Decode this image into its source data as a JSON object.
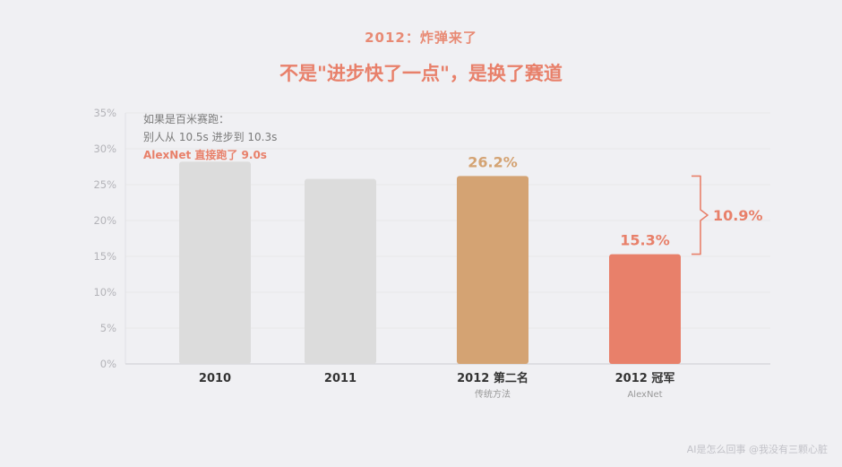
{
  "kicker": "2012：炸弹来了",
  "headline": "不是\"进步快了一点\"，是换了赛道",
  "note": {
    "line1": "如果是百米赛跑：",
    "line2": "别人从 10.5s 进步到 10.3s",
    "line3": "AlexNet 直接跑了 9.0s"
  },
  "footer": "AI是怎么回事 @我没有三颗心脏",
  "colors": {
    "gray_bar": "#dcdcdc",
    "second_bar": "#d4a373",
    "alexnet_bar": "#e8806a",
    "accent": "#e8806a"
  },
  "chart_data": {
    "type": "bar",
    "ylim": [
      0,
      35
    ],
    "y_tick_step": 5,
    "y_tick_suffix": "%",
    "grid": true,
    "categories": [
      "2010",
      "2011",
      "2012 第二名",
      "2012 冠军"
    ],
    "subcategories": [
      "",
      "",
      "传统方法",
      "AlexNet"
    ],
    "values": [
      28.2,
      25.8,
      26.2,
      15.3
    ],
    "data_labels": [
      "",
      "",
      "26.2%",
      "15.3%"
    ],
    "bar_colors": [
      "#dcdcdc",
      "#dcdcdc",
      "#d4a373",
      "#e8806a"
    ],
    "label_colors": [
      "",
      "",
      "#d4a373",
      "#e8806a"
    ],
    "bracket": {
      "from_index": 2,
      "to_index": 3,
      "label": "10.9%"
    }
  }
}
